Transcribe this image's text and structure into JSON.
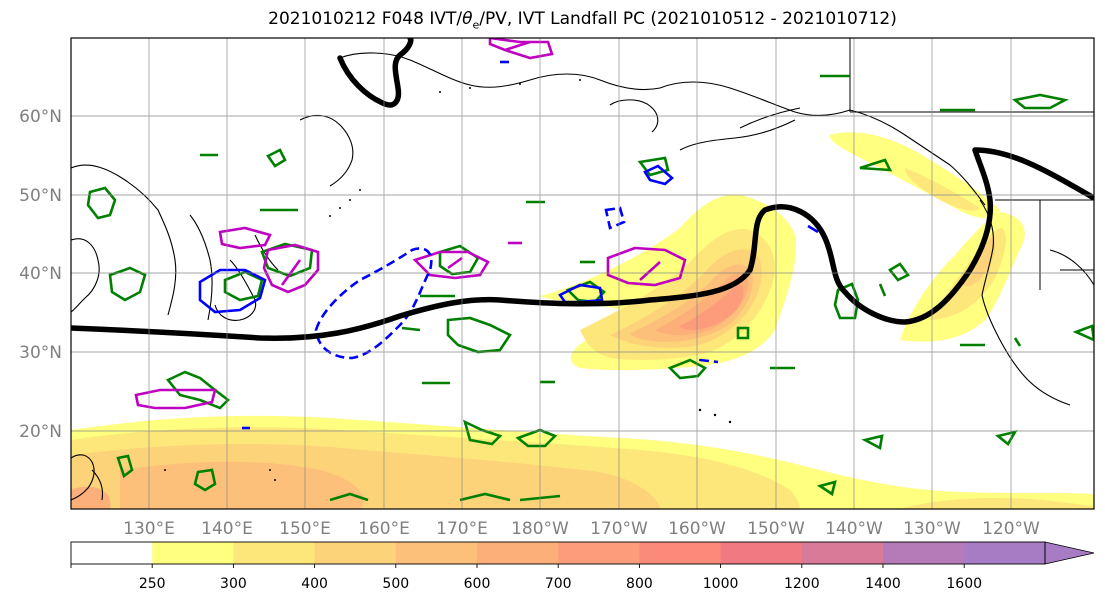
{
  "title": {
    "pre": "2021010212 F048 IVT/",
    "theta": "θ",
    "sub": "e",
    "post": "/PV, IVT Landfall PC (2021010512 - 2021010712)"
  },
  "lat_labels": [
    "60°N",
    "50°N",
    "40°N",
    "30°N",
    "20°N"
  ],
  "lon_labels": [
    "130°E",
    "140°E",
    "150°E",
    "160°E",
    "170°E",
    "180°W",
    "170°W",
    "160°W",
    "150°W",
    "140°W",
    "130°W",
    "120°W"
  ],
  "colorbar": {
    "ticks": [
      "250",
      "300",
      "400",
      "500",
      "600",
      "700",
      "800",
      "1000",
      "1200",
      "1400",
      "1600"
    ],
    "colors": [
      "#ffffff",
      "#ffff80",
      "#fde77a",
      "#fdd37a",
      "#fdc07a",
      "#fdaf7a",
      "#fd9c7a",
      "#fc8a7a",
      "#f07a82",
      "#d97a98",
      "#b47bb8",
      "#a77cc4"
    ]
  },
  "contour_colors": {
    "streamline": "#000000",
    "theta_e": "#008000",
    "pv_dashed": "#0000ff",
    "magenta": "#c000c0"
  }
}
